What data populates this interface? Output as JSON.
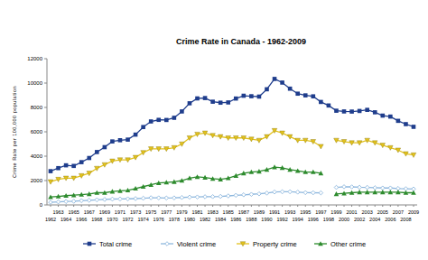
{
  "chart_data": {
    "type": "line",
    "title": "Crime Rate in Canada - 1962-2009",
    "y_label": "Crime Rate per 100,000 population",
    "categories": [
      "1962",
      "1963",
      "1964",
      "1965",
      "1966",
      "1967",
      "1968",
      "1969",
      "1970",
      "1971",
      "1972",
      "1973",
      "1974",
      "1975",
      "1976",
      "1977",
      "1978",
      "1979",
      "1980",
      "1981",
      "1982",
      "1983",
      "1984",
      "1985",
      "1986",
      "1987",
      "1988",
      "1989",
      "1990",
      "1991",
      "1992",
      "1993",
      "1994",
      "1995",
      "1996",
      "1997",
      "1998",
      "1999",
      "2000",
      "2001",
      "2002",
      "2003",
      "2004",
      "2005",
      "2006",
      "2007",
      "2008",
      "2009"
    ],
    "series": [
      {
        "name": "Total crime",
        "color": "#1f3d8c",
        "marker": "square",
        "line_style": "solid",
        "values": [
          2770,
          3020,
          3250,
          3200,
          3510,
          3850,
          4340,
          4740,
          5210,
          5310,
          5360,
          5770,
          6390,
          6850,
          6980,
          6970,
          7150,
          7670,
          8340,
          8740,
          8770,
          8470,
          8390,
          8410,
          8730,
          8960,
          8920,
          8890,
          9490,
          10340,
          10040,
          9540,
          9130,
          8990,
          8910,
          8450,
          8160,
          7730,
          7670,
          7660,
          7710,
          7800,
          7600,
          7330,
          7250,
          6900,
          6630,
          6410
        ]
      },
      {
        "name": "Violent crime",
        "color": "#8fb8de",
        "marker": "x",
        "line_style": "solid",
        "values": [
          220,
          250,
          280,
          300,
          350,
          380,
          420,
          450,
          480,
          490,
          500,
          520,
          550,
          590,
          580,
          570,
          580,
          610,
          640,
          650,
          670,
          680,
          700,
          740,
          790,
          830,
          870,
          910,
          970,
          1060,
          1080,
          1080,
          1050,
          1010,
          1000,
          990,
          null,
          1440,
          1490,
          1480,
          1450,
          1440,
          1410,
          1390,
          1390,
          1350,
          1330,
          1310
        ]
      },
      {
        "name": "Property crime",
        "color": "#e3c21c",
        "marker": "triangle-down",
        "line_style": "solid",
        "values": [
          1900,
          2100,
          2200,
          2200,
          2400,
          2600,
          3000,
          3300,
          3600,
          3700,
          3700,
          3900,
          4300,
          4600,
          4600,
          4600,
          4700,
          5000,
          5500,
          5800,
          5900,
          5700,
          5600,
          5500,
          5500,
          5500,
          5400,
          5300,
          5600,
          6100,
          5900,
          5600,
          5300,
          5300,
          5200,
          4800,
          null,
          5300,
          5200,
          5100,
          5100,
          5300,
          5100,
          4900,
          4700,
          4500,
          4200,
          4100
        ]
      },
      {
        "name": "Other crime",
        "color": "#2e8b2e",
        "marker": "triangle",
        "line_style": "solid",
        "values": [
          650,
          700,
          760,
          800,
          850,
          900,
          1000,
          1000,
          1100,
          1150,
          1200,
          1350,
          1500,
          1650,
          1800,
          1850,
          1900,
          2000,
          2200,
          2300,
          2250,
          2150,
          2100,
          2200,
          2400,
          2600,
          2700,
          2750,
          2900,
          3100,
          3050,
          2900,
          2800,
          2700,
          2700,
          2600,
          null,
          900,
          950,
          1000,
          1050,
          1050,
          1050,
          1050,
          1050,
          1050,
          1000,
          1000
        ]
      }
    ],
    "ylim": [
      0,
      12000
    ],
    "yticks": [
      0,
      2000,
      4000,
      6000,
      8000,
      10000,
      12000
    ],
    "grid": false,
    "legend": "bottom"
  }
}
